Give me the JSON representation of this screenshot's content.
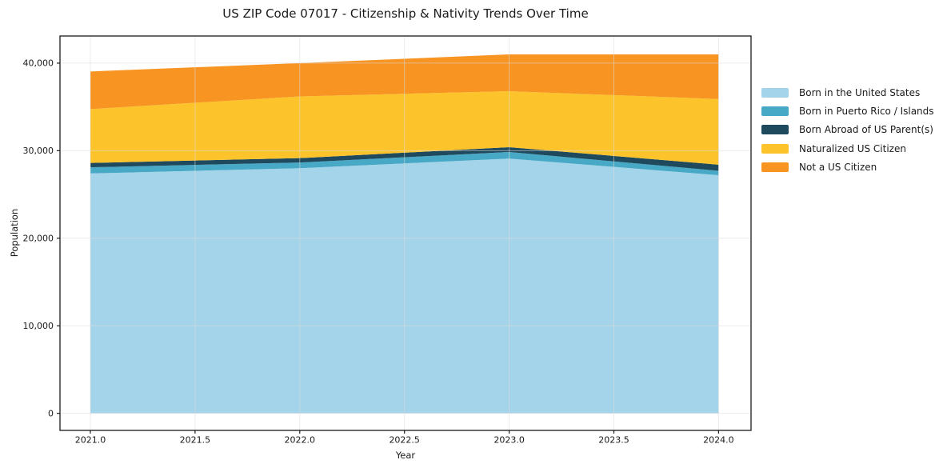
{
  "chart_data": {
    "type": "area",
    "stacked": true,
    "title": "US ZIP Code 07017 - Citizenship & Nativity Trends Over Time",
    "xlabel": "Year",
    "ylabel": "Population",
    "x": [
      2021,
      2022,
      2023,
      2024
    ],
    "series": [
      {
        "name": "Born in the United States",
        "color": "#a4d4e9",
        "values": [
          27400,
          28000,
          29100,
          27200
        ]
      },
      {
        "name": "Born in Puerto Rico / Islands",
        "color": "#47a9c6",
        "values": [
          700,
          650,
          750,
          500
        ]
      },
      {
        "name": "Born Abroad of US Parent(s)",
        "color": "#1f4a5e",
        "values": [
          500,
          500,
          550,
          700
        ]
      },
      {
        "name": "Naturalized US Citizen",
        "color": "#fdc32b",
        "values": [
          6150,
          7050,
          6400,
          7500
        ]
      },
      {
        "name": "Not a US Citizen",
        "color": "#f79422",
        "values": [
          4300,
          3800,
          4200,
          5100
        ]
      }
    ],
    "cumulative_totals_by_year": {
      "2021": 39050,
      "2022": 40000,
      "2023": 41000,
      "2024": 41000
    },
    "x_ticks": [
      2021.0,
      2021.5,
      2022.0,
      2022.5,
      2023.0,
      2023.5,
      2024.0
    ],
    "x_ticklabels": [
      "2021.0",
      "2021.5",
      "2022.0",
      "2022.5",
      "2023.0",
      "2023.5",
      "2024.0"
    ],
    "y_ticks": [
      0,
      10000,
      20000,
      30000,
      40000
    ],
    "y_ticklabels": [
      "0",
      "10,000",
      "20,000",
      "30,000",
      "40,000"
    ],
    "xlim": [
      2020.855,
      2024.155
    ],
    "ylim": [
      -1950,
      43100
    ],
    "grid": true,
    "grid_on_top": true,
    "legend_position": "right"
  },
  "colors": {
    "text": "#1a1a1a",
    "grid": "#dadada",
    "spine": "#1a1a1a",
    "background": "#ffffff"
  }
}
